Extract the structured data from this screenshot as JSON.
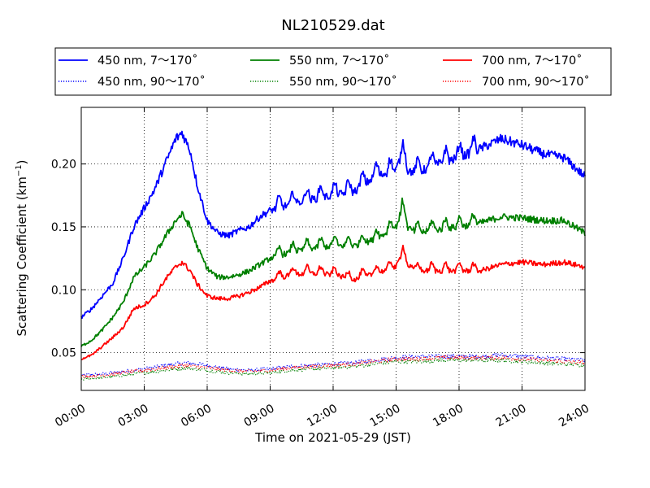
{
  "chart_data": {
    "type": "line",
    "title": "NL210529.dat",
    "xlabel": "Time on 2021-05-29 (JST)",
    "ylabel_main": "Scattering Coefficient (km",
    "ylabel_sup": "−1",
    "ylabel_close": ")",
    "xlim": [
      0,
      24
    ],
    "ylim": [
      0.02,
      0.245
    ],
    "x_ticks": [
      0,
      3,
      6,
      9,
      12,
      15,
      18,
      21,
      24
    ],
    "x_tick_labels": [
      "00:00",
      "03:00",
      "06:00",
      "09:00",
      "12:00",
      "15:00",
      "18:00",
      "21:00",
      "24:00"
    ],
    "y_ticks": [
      0.05,
      0.1,
      0.15,
      0.2
    ],
    "y_tick_labels": [
      "0.05",
      "0.10",
      "0.15",
      "0.20"
    ],
    "grid": true,
    "legend_position": "top",
    "series": [
      {
        "name": "450 nm, 7～170˚",
        "color": "#0000ff",
        "style": "solid",
        "x": [
          0,
          0.5,
          1,
          1.5,
          2,
          2.5,
          3,
          3.5,
          4,
          4.5,
          4.8,
          5.2,
          5.5,
          6,
          6.5,
          7,
          7.5,
          8,
          8.5,
          9,
          10,
          11,
          12,
          13,
          14,
          15,
          15.3,
          15.5,
          16,
          17,
          18,
          19,
          20,
          21,
          22,
          23,
          24
        ],
        "y": [
          0.078,
          0.085,
          0.095,
          0.105,
          0.125,
          0.15,
          0.165,
          0.18,
          0.2,
          0.22,
          0.225,
          0.21,
          0.185,
          0.155,
          0.145,
          0.143,
          0.147,
          0.15,
          0.158,
          0.163,
          0.168,
          0.172,
          0.175,
          0.178,
          0.19,
          0.195,
          0.21,
          0.195,
          0.193,
          0.2,
          0.205,
          0.212,
          0.22,
          0.215,
          0.208,
          0.205,
          0.19
        ]
      },
      {
        "name": "550 nm, 7～170˚",
        "color": "#008000",
        "style": "solid",
        "x": [
          0,
          0.5,
          1,
          1.5,
          2,
          2.5,
          3,
          3.5,
          4,
          4.5,
          4.8,
          5.2,
          5.5,
          6,
          6.5,
          7,
          7.5,
          8,
          8.5,
          9,
          10,
          11,
          12,
          13,
          14,
          15,
          15.3,
          15.5,
          16,
          17,
          18,
          19,
          20,
          21,
          22,
          23,
          24
        ],
        "y": [
          0.055,
          0.06,
          0.068,
          0.078,
          0.09,
          0.11,
          0.118,
          0.128,
          0.142,
          0.155,
          0.16,
          0.15,
          0.135,
          0.117,
          0.11,
          0.11,
          0.112,
          0.115,
          0.12,
          0.125,
          0.13,
          0.133,
          0.135,
          0.135,
          0.14,
          0.15,
          0.165,
          0.15,
          0.145,
          0.148,
          0.15,
          0.153,
          0.158,
          0.157,
          0.155,
          0.155,
          0.145
        ]
      },
      {
        "name": "700 nm, 7～170˚",
        "color": "#ff0000",
        "style": "solid",
        "x": [
          0,
          0.5,
          1,
          1.5,
          2,
          2.5,
          3,
          3.5,
          4,
          4.5,
          4.8,
          5.2,
          5.5,
          6,
          6.5,
          7,
          7.5,
          8,
          8.5,
          9,
          10,
          11,
          12,
          13,
          14,
          15,
          15.3,
          15.5,
          16,
          17,
          18,
          19,
          20,
          21,
          22,
          23,
          24
        ],
        "y": [
          0.045,
          0.048,
          0.055,
          0.062,
          0.07,
          0.085,
          0.088,
          0.095,
          0.108,
          0.118,
          0.122,
          0.115,
          0.105,
          0.095,
          0.093,
          0.093,
          0.095,
          0.098,
          0.102,
          0.107,
          0.112,
          0.113,
          0.112,
          0.108,
          0.113,
          0.118,
          0.13,
          0.12,
          0.115,
          0.115,
          0.115,
          0.115,
          0.12,
          0.122,
          0.12,
          0.122,
          0.118
        ]
      },
      {
        "name": "450 nm, 90～170˚",
        "color": "#0000ff",
        "style": "dotted",
        "x": [
          0,
          1,
          2,
          3,
          4,
          5,
          6,
          7,
          8,
          9,
          10,
          11,
          12,
          13,
          14,
          15,
          16,
          17,
          18,
          19,
          20,
          21,
          22,
          23,
          24
        ],
        "y": [
          0.032,
          0.033,
          0.035,
          0.037,
          0.04,
          0.042,
          0.04,
          0.037,
          0.036,
          0.037,
          0.039,
          0.04,
          0.041,
          0.042,
          0.044,
          0.046,
          0.047,
          0.047,
          0.047,
          0.047,
          0.048,
          0.047,
          0.046,
          0.045,
          0.044
        ]
      },
      {
        "name": "550 nm, 90～170˚",
        "color": "#008000",
        "style": "dotted",
        "x": [
          0,
          1,
          2,
          3,
          4,
          5,
          6,
          7,
          8,
          9,
          10,
          11,
          12,
          13,
          14,
          15,
          16,
          17,
          18,
          19,
          20,
          21,
          22,
          23,
          24
        ],
        "y": [
          0.029,
          0.03,
          0.032,
          0.034,
          0.036,
          0.038,
          0.036,
          0.034,
          0.033,
          0.034,
          0.036,
          0.037,
          0.038,
          0.039,
          0.041,
          0.043,
          0.043,
          0.044,
          0.044,
          0.044,
          0.044,
          0.043,
          0.042,
          0.041,
          0.04
        ]
      },
      {
        "name": "700 nm, 90～170˚",
        "color": "#ff0000",
        "style": "dotted",
        "x": [
          0,
          1,
          2,
          3,
          4,
          5,
          6,
          7,
          8,
          9,
          10,
          11,
          12,
          13,
          14,
          15,
          16,
          17,
          18,
          19,
          20,
          21,
          22,
          23,
          24
        ],
        "y": [
          0.031,
          0.032,
          0.034,
          0.036,
          0.038,
          0.04,
          0.038,
          0.036,
          0.035,
          0.036,
          0.038,
          0.039,
          0.04,
          0.041,
          0.043,
          0.045,
          0.045,
          0.046,
          0.046,
          0.046,
          0.046,
          0.045,
          0.044,
          0.043,
          0.042
        ]
      }
    ]
  }
}
